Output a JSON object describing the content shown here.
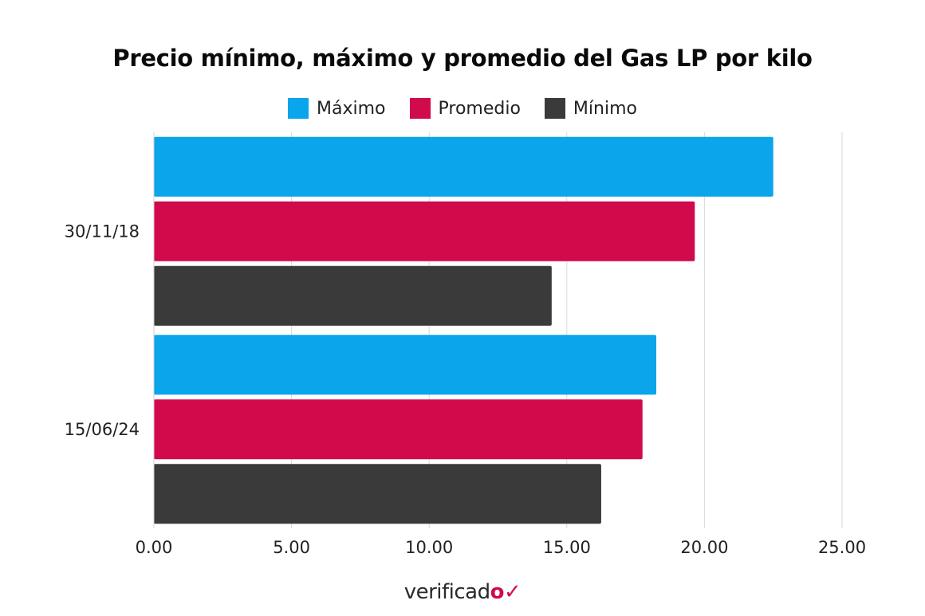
{
  "chart_data": {
    "type": "bar",
    "orientation": "horizontal",
    "title": "Precio mínimo, máximo y promedio del Gas LP por kilo",
    "xlabel": "",
    "ylabel": "",
    "categories": [
      "30/11/18",
      "15/06/24"
    ],
    "series": [
      {
        "name": "Máximo",
        "color": "#0aa5ea",
        "values": [
          22.5,
          18.25
        ]
      },
      {
        "name": "Promedio",
        "color": "#d10a4b",
        "values": [
          19.65,
          17.75
        ]
      },
      {
        "name": "Mínimo",
        "color": "#3a3a3a",
        "values": [
          14.45,
          16.25
        ]
      }
    ],
    "xlim": [
      0,
      25
    ],
    "xticks": [
      "0.00",
      "5.00",
      "10.00",
      "15.00",
      "20.00",
      "25.00"
    ],
    "grid": true,
    "legend_position": "top"
  },
  "logo": {
    "text": "verificad",
    "mark": "o✓"
  }
}
